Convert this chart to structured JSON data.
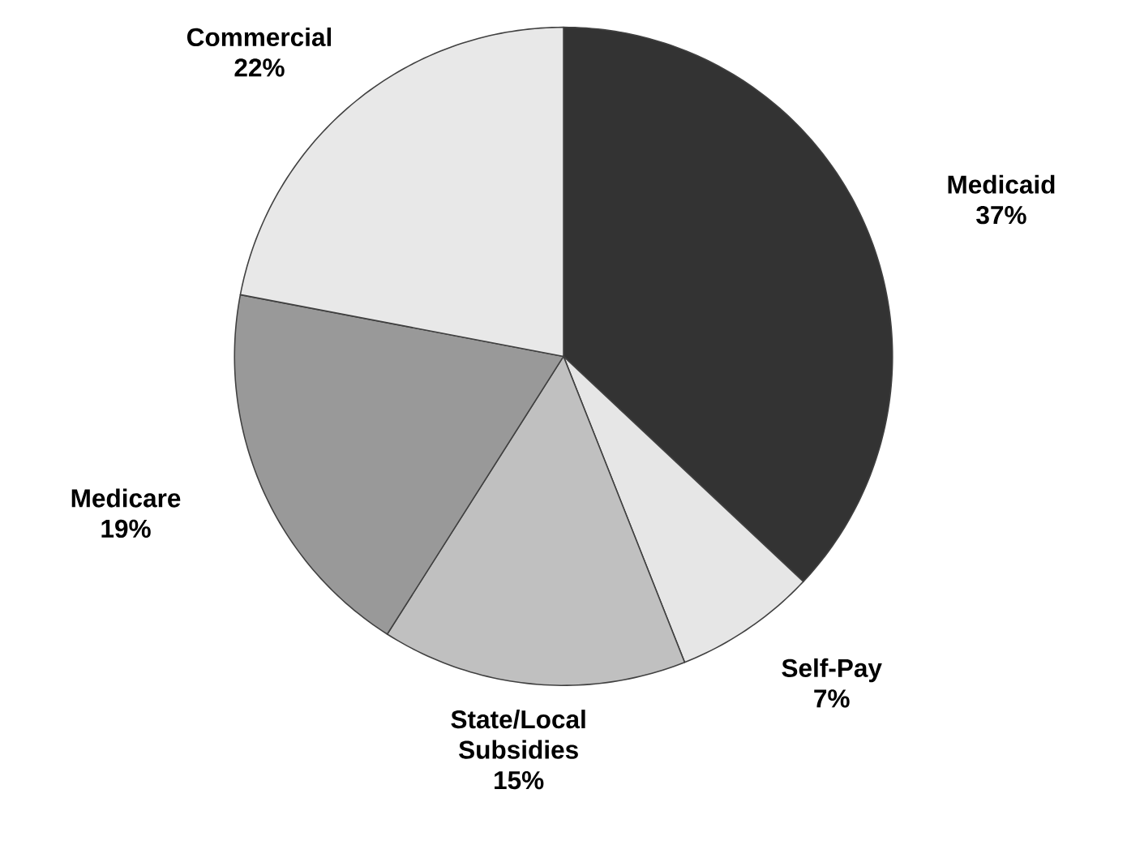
{
  "chart_data": {
    "type": "pie",
    "categories": [
      "Medicaid",
      "Self-Pay",
      "State/Local Subsidies",
      "Medicare",
      "Commercial"
    ],
    "values": [
      37,
      7,
      15,
      19,
      22
    ],
    "value_labels": [
      "37%",
      "7%",
      "15%",
      "19%",
      "22%"
    ],
    "colors": [
      "#333333",
      "#e6e6e6",
      "#c0c0c0",
      "#999999",
      "#e8e8e8"
    ]
  }
}
